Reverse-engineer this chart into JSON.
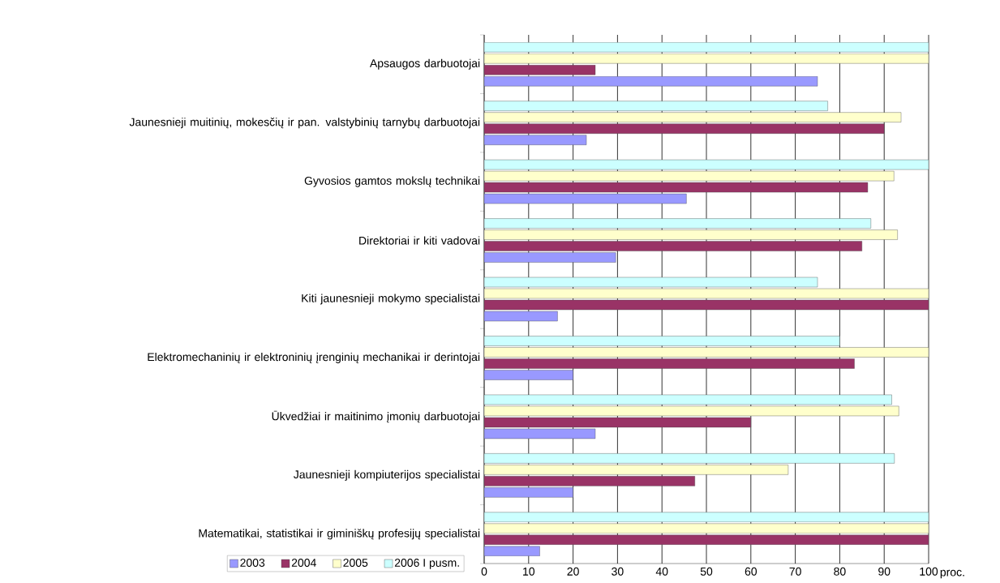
{
  "chart_data": {
    "type": "bar",
    "orientation": "horizontal",
    "categories": [
      "Apsaugos darbuotojai",
      "Jaunesnieji muitinių, mokesčių ir pan. valstybinių tarnybų darbuotojai",
      "Gyvosios gamtos mokslų technikai",
      "Direktoriai ir kiti vadovai",
      "Kiti jaunesnieji mokymo specialistai",
      "Elektromechaninių ir elektroninių įrenginių mechanikai ir derintojai",
      "Ūkvedžiai ir maitinimo įmonių darbuotojai",
      "Jaunesnieji kompiuterijos specialistai",
      "Matematikai, statistikai ir giminiškų profesijų specialistai"
    ],
    "series": [
      {
        "name": "2003",
        "color": "#9999ff",
        "values": [
          75,
          23,
          45.5,
          29.6,
          16.5,
          20,
          25,
          20,
          12.5
        ]
      },
      {
        "name": "2004",
        "color": "#993366",
        "values": [
          25,
          90,
          86.3,
          85,
          100,
          83.3,
          60,
          47.4,
          100
        ]
      },
      {
        "name": "2005",
        "color": "#ffffcc",
        "values": [
          100,
          93.8,
          92.2,
          93,
          100,
          100,
          93.3,
          68.4,
          100
        ]
      },
      {
        "name": "2006 I pusm.",
        "color": "#ccffff",
        "values": [
          100,
          77.3,
          100,
          87,
          75,
          80,
          91.7,
          92.3,
          100
        ]
      }
    ],
    "xlabel": "proc.",
    "xlim": [
      0,
      100
    ],
    "xticks": [
      0,
      10,
      20,
      30,
      40,
      50,
      60,
      70,
      80,
      90,
      100
    ],
    "grid": "x",
    "legend": "bottom left"
  }
}
